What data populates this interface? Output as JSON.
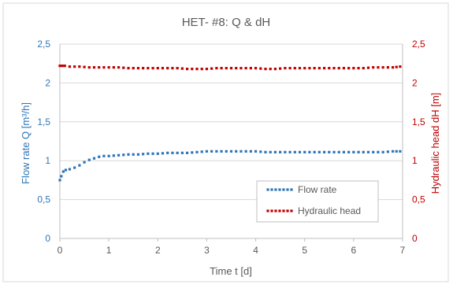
{
  "colors": {
    "flow": "#2e75b6",
    "head": "#c00000",
    "axis_text": "#595959",
    "grid": "#d9d9d9",
    "frame": "#bfbfbf"
  },
  "chart_data": {
    "type": "scatter",
    "title": "HET-  #8: Q & dH",
    "xlabel": "Time t [d]",
    "ylabel_left": "Flow  rate Q [m³/h]",
    "ylabel_right": "Hydraulic  head  dH [m]",
    "xlim": [
      0,
      7
    ],
    "ylim_left": [
      0,
      2.5
    ],
    "ylim_right": [
      0,
      2.5
    ],
    "x_ticks": [
      "0",
      "1",
      "2",
      "3",
      "4",
      "5",
      "6",
      "7"
    ],
    "y_ticks_left": [
      "0",
      "0,5",
      "1",
      "1,5",
      "2",
      "2,5"
    ],
    "y_ticks_right": [
      "0",
      "0,5",
      "1",
      "1,5",
      "2",
      "2,5"
    ],
    "grid": "horizontal",
    "legend_position": "center-right",
    "legend": [
      "Flow rate",
      "Hydraulic head"
    ],
    "series": [
      {
        "name": "Flow rate",
        "axis": "left",
        "marker": "dotted",
        "x": [
          0.0,
          0.03,
          0.07,
          0.12,
          0.2,
          0.3,
          0.4,
          0.5,
          0.6,
          0.7,
          0.8,
          0.9,
          1.0,
          1.2,
          1.4,
          1.6,
          1.8,
          2.0,
          2.2,
          2.4,
          2.6,
          2.8,
          3.0,
          3.2,
          3.4,
          3.6,
          3.8,
          4.0,
          4.2,
          4.4,
          4.6,
          4.8,
          5.0,
          5.2,
          5.4,
          5.6,
          5.8,
          6.0,
          6.2,
          6.4,
          6.6,
          6.8,
          6.95
        ],
        "y": [
          0.75,
          0.8,
          0.86,
          0.88,
          0.89,
          0.91,
          0.94,
          0.98,
          1.01,
          1.03,
          1.05,
          1.06,
          1.06,
          1.07,
          1.08,
          1.08,
          1.09,
          1.09,
          1.1,
          1.1,
          1.1,
          1.11,
          1.12,
          1.12,
          1.12,
          1.12,
          1.12,
          1.12,
          1.11,
          1.11,
          1.11,
          1.11,
          1.11,
          1.11,
          1.11,
          1.11,
          1.11,
          1.11,
          1.11,
          1.11,
          1.11,
          1.12,
          1.12
        ]
      },
      {
        "name": "Hydraulic head",
        "axis": "right",
        "marker": "dotted",
        "x": [
          0.0,
          0.05,
          0.1,
          0.2,
          0.4,
          0.6,
          0.8,
          1.0,
          1.2,
          1.4,
          1.6,
          1.8,
          2.0,
          2.2,
          2.4,
          2.6,
          2.8,
          3.0,
          3.2,
          3.4,
          3.6,
          3.8,
          4.0,
          4.2,
          4.4,
          4.6,
          4.8,
          5.0,
          5.2,
          5.4,
          5.6,
          5.8,
          6.0,
          6.2,
          6.4,
          6.6,
          6.8,
          6.95
        ],
        "y": [
          2.22,
          2.22,
          2.22,
          2.21,
          2.21,
          2.2,
          2.2,
          2.2,
          2.2,
          2.19,
          2.19,
          2.19,
          2.19,
          2.19,
          2.19,
          2.18,
          2.18,
          2.18,
          2.19,
          2.19,
          2.19,
          2.19,
          2.19,
          2.18,
          2.18,
          2.19,
          2.19,
          2.19,
          2.19,
          2.19,
          2.19,
          2.19,
          2.19,
          2.19,
          2.2,
          2.2,
          2.2,
          2.21
        ]
      }
    ]
  }
}
